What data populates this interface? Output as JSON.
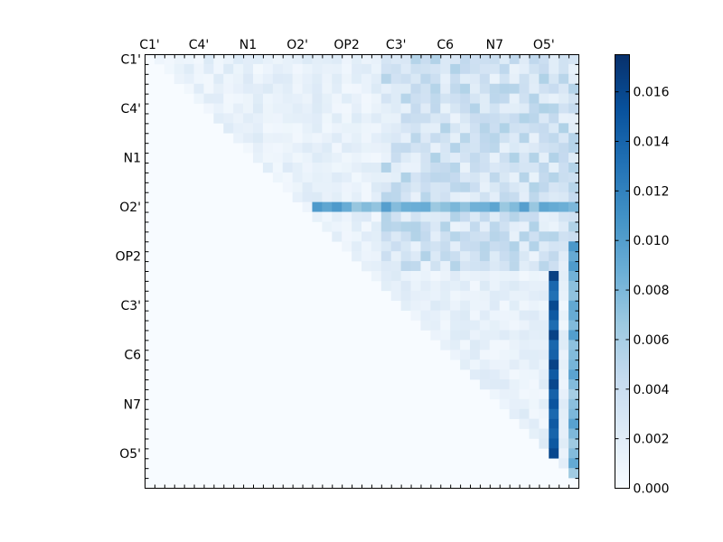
{
  "chart_data": {
    "type": "heatmap",
    "title": "",
    "xlabel": "",
    "ylabel": "",
    "n": 44,
    "tick_every": 5,
    "x_tick_labels": [
      "C1'",
      "C4'",
      "N1",
      "O2'",
      "OP2",
      "C3'",
      "C6",
      "N7",
      "O5'"
    ],
    "y_tick_labels": [
      "C1'",
      "C4'",
      "N1",
      "O2'",
      "OP2",
      "C3'",
      "C6",
      "N7",
      "O5'"
    ],
    "x_ticks_position": "top",
    "colormap": "Blues",
    "colorbar": {
      "min": 0.0,
      "max": 0.0175,
      "ticks": [
        0.0,
        0.002,
        0.004,
        0.006,
        0.008,
        0.01,
        0.012,
        0.014,
        0.016
      ],
      "tick_labels": [
        "0.000",
        "0.002",
        "0.004",
        "0.006",
        "0.008",
        "0.010",
        "0.012",
        "0.014",
        "0.016"
      ],
      "position": "right"
    },
    "matrix_shape": "upper-triangular",
    "highlighted_row_index": 15,
    "highlighted_row_value": 0.009,
    "highlighted_column_index": 41,
    "highlighted_column_value": 0.015,
    "grid": false
  }
}
